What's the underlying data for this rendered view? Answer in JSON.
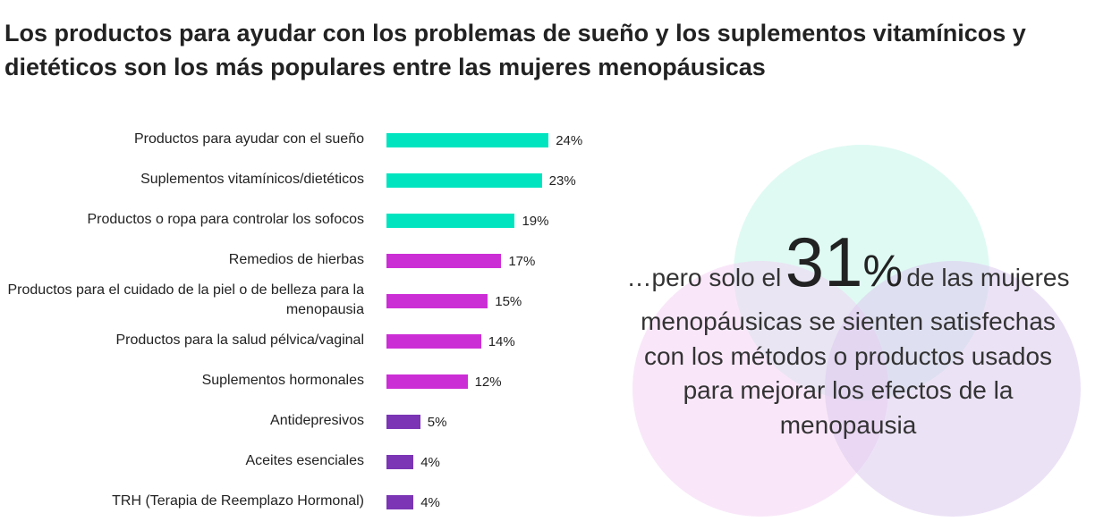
{
  "chart_data": {
    "type": "bar",
    "orientation": "horizontal",
    "title": "Los productos para ayudar con los problemas de sueño y los suplementos vitamínicos y dietéticos son los más populares entre las mujeres menopáusicas",
    "categories": [
      "Productos para ayudar con el sueño",
      "Suplementos vitamínicos/dietéticos",
      "Productos o ropa para controlar los sofocos",
      "Remedios de hierbas",
      "Productos para el cuidado de la piel o de belleza para la menopausia",
      "Productos para la salud pélvica/vaginal",
      "Suplementos hormonales",
      "Antidepresivos",
      "Aceites esenciales",
      "TRH (Terapia de Reemplazo Hormonal)"
    ],
    "values": [
      24,
      23,
      19,
      17,
      15,
      14,
      12,
      5,
      4,
      4
    ],
    "value_labels": [
      "24%",
      "23%",
      "19%",
      "17%",
      "15%",
      "14%",
      "12%",
      "5%",
      "4%",
      "4%"
    ],
    "colors": [
      "#00e5c0",
      "#00e5c0",
      "#00e5c0",
      "#cc2ed6",
      "#cc2ed6",
      "#cc2ed6",
      "#cc2ed6",
      "#7b35b5",
      "#7b35b5",
      "#7b35b5"
    ],
    "callout": {
      "prefix": "…pero solo el",
      "highlight": "31",
      "unit": "%",
      "suffix": "de las mujeres",
      "lines": [
        "menopáusicas se sienten satisfechas",
        "con los métodos o productos usados",
        "para mejorar los efectos de la",
        "menopausia"
      ]
    }
  }
}
